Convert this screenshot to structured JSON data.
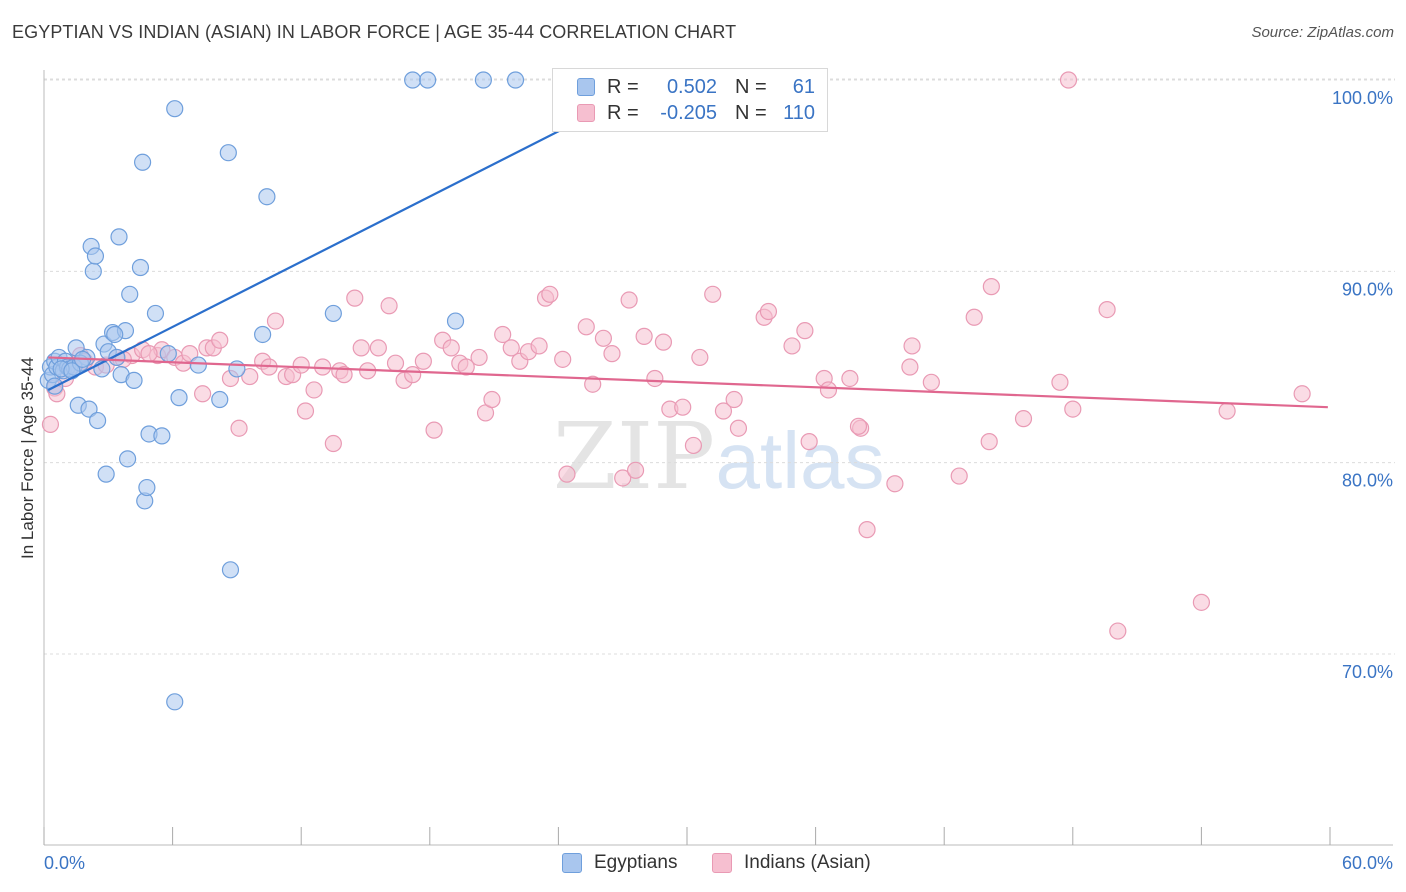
{
  "title": "EGYPTIAN VS INDIAN (ASIAN) IN LABOR FORCE | AGE 35-44 CORRELATION CHART",
  "source": "Source: ZipAtlas.com",
  "watermark": {
    "zip": "ZIP",
    "atlas": "atlas"
  },
  "legend": {
    "r_label": "R =",
    "n_label": "N =",
    "egyptians": {
      "r": "0.502",
      "n": "61"
    },
    "indians": {
      "r": "-0.205",
      "n": "110"
    }
  },
  "bottom_legend": {
    "egyptians": "Egyptians",
    "indians": "Indians (Asian)"
  },
  "colors": {
    "egyptians_fill": "#a9c6ee",
    "egyptians_stroke": "#6f9fdc",
    "egyptians_line": "#2b6fcc",
    "indians_fill": "#f6bfd0",
    "indians_stroke": "#e99ab4",
    "indians_line": "#e0678f",
    "tick_label": "#3a74c4",
    "grid": "#dcdcdc"
  },
  "chart_data": {
    "type": "scatter",
    "title": "EGYPTIAN VS INDIAN (ASIAN) IN LABOR FORCE | AGE 35-44 CORRELATION CHART",
    "xlabel": "",
    "ylabel": "In Labor Force | Age 35-44",
    "xlim": [
      0,
      60
    ],
    "ylim": [
      60,
      102
    ],
    "x_tick_labels": [
      "0.0%",
      "60.0%"
    ],
    "y_ticks": [
      70,
      80,
      90,
      100
    ],
    "y_tick_labels": [
      "70.0%",
      "80.0%",
      "90.0%",
      "100.0%"
    ],
    "grid": true,
    "legend_position": "top-center",
    "series": [
      {
        "name": "Egyptians",
        "r": 0.502,
        "n": 61,
        "trend": {
          "x": [
            0.2,
            25.2
          ],
          "y": [
            83.8,
            98.0
          ]
        },
        "points": [
          [
            0.2,
            84.3
          ],
          [
            0.3,
            85.0
          ],
          [
            0.4,
            84.6
          ],
          [
            0.5,
            85.3
          ],
          [
            0.6,
            85.0
          ],
          [
            0.7,
            85.5
          ],
          [
            0.9,
            84.8
          ],
          [
            1.0,
            85.3
          ],
          [
            1.1,
            85.0
          ],
          [
            1.2,
            84.9
          ],
          [
            1.4,
            85.0
          ],
          [
            1.5,
            86.0
          ],
          [
            1.6,
            83.0
          ],
          [
            2.0,
            85.5
          ],
          [
            2.1,
            82.8
          ],
          [
            2.2,
            91.3
          ],
          [
            2.3,
            90.0
          ],
          [
            2.4,
            90.8
          ],
          [
            2.5,
            82.2
          ],
          [
            2.8,
            86.2
          ],
          [
            2.9,
            79.4
          ],
          [
            3.0,
            85.8
          ],
          [
            3.2,
            86.8
          ],
          [
            3.4,
            85.5
          ],
          [
            3.5,
            91.8
          ],
          [
            3.6,
            84.6
          ],
          [
            3.8,
            86.9
          ],
          [
            3.9,
            80.2
          ],
          [
            4.0,
            88.8
          ],
          [
            4.2,
            84.3
          ],
          [
            4.6,
            95.7
          ],
          [
            4.5,
            90.2
          ],
          [
            4.7,
            78.0
          ],
          [
            4.8,
            78.7
          ],
          [
            4.9,
            81.5
          ],
          [
            5.2,
            87.8
          ],
          [
            5.5,
            81.4
          ],
          [
            5.8,
            85.7
          ],
          [
            6.1,
            67.5
          ],
          [
            6.1,
            98.5
          ],
          [
            6.3,
            83.4
          ],
          [
            7.2,
            85.1
          ],
          [
            8.2,
            83.3
          ],
          [
            8.7,
            74.4
          ],
          [
            8.6,
            96.2
          ],
          [
            9.0,
            84.9
          ],
          [
            10.2,
            86.7
          ],
          [
            10.4,
            93.9
          ],
          [
            13.5,
            87.8
          ],
          [
            17.2,
            100.0
          ],
          [
            17.9,
            100.0
          ],
          [
            19.2,
            87.4
          ],
          [
            20.5,
            100.0
          ],
          [
            22.0,
            100.0
          ],
          [
            1.7,
            85.2
          ],
          [
            2.7,
            84.9
          ],
          [
            3.3,
            86.7
          ],
          [
            0.8,
            84.9
          ],
          [
            1.3,
            84.8
          ],
          [
            1.8,
            85.4
          ],
          [
            0.5,
            84.0
          ]
        ]
      },
      {
        "name": "Indians (Asian)",
        "r": -0.205,
        "n": 110,
        "trend": {
          "x": [
            0.2,
            59.9
          ],
          "y": [
            85.5,
            82.9
          ]
        },
        "points": [
          [
            0.3,
            82.0
          ],
          [
            0.5,
            83.9
          ],
          [
            1.0,
            84.4
          ],
          [
            1.4,
            85.1
          ],
          [
            1.7,
            85.6
          ],
          [
            2.4,
            85.0
          ],
          [
            3.4,
            85.5
          ],
          [
            4.1,
            85.6
          ],
          [
            4.6,
            85.9
          ],
          [
            5.3,
            85.6
          ],
          [
            5.5,
            85.9
          ],
          [
            6.1,
            85.5
          ],
          [
            6.5,
            85.2
          ],
          [
            6.8,
            85.7
          ],
          [
            7.4,
            83.6
          ],
          [
            7.6,
            86.0
          ],
          [
            7.9,
            86.0
          ],
          [
            8.2,
            86.4
          ],
          [
            8.7,
            84.4
          ],
          [
            9.1,
            81.8
          ],
          [
            9.6,
            84.5
          ],
          [
            10.2,
            85.3
          ],
          [
            10.5,
            85.0
          ],
          [
            10.8,
            87.4
          ],
          [
            11.3,
            84.5
          ],
          [
            11.6,
            84.6
          ],
          [
            12.0,
            85.1
          ],
          [
            12.2,
            82.7
          ],
          [
            12.6,
            83.8
          ],
          [
            13.0,
            85.0
          ],
          [
            13.5,
            81.0
          ],
          [
            13.8,
            84.8
          ],
          [
            14.0,
            84.6
          ],
          [
            14.5,
            88.6
          ],
          [
            14.8,
            86.0
          ],
          [
            15.1,
            84.8
          ],
          [
            15.6,
            86.0
          ],
          [
            16.1,
            88.2
          ],
          [
            16.4,
            85.2
          ],
          [
            16.8,
            84.3
          ],
          [
            17.2,
            84.6
          ],
          [
            17.7,
            85.3
          ],
          [
            18.2,
            81.7
          ],
          [
            18.6,
            86.4
          ],
          [
            19.0,
            86.0
          ],
          [
            19.4,
            85.2
          ],
          [
            19.7,
            85.0
          ],
          [
            20.3,
            85.5
          ],
          [
            20.6,
            82.6
          ],
          [
            20.9,
            83.3
          ],
          [
            21.4,
            86.7
          ],
          [
            21.8,
            86.0
          ],
          [
            22.2,
            85.3
          ],
          [
            22.6,
            85.8
          ],
          [
            23.1,
            86.1
          ],
          [
            23.4,
            88.6
          ],
          [
            23.6,
            88.8
          ],
          [
            24.2,
            85.4
          ],
          [
            24.4,
            79.4
          ],
          [
            25.3,
            87.1
          ],
          [
            25.6,
            84.1
          ],
          [
            26.1,
            86.5
          ],
          [
            26.5,
            85.7
          ],
          [
            27.0,
            79.2
          ],
          [
            27.3,
            88.5
          ],
          [
            27.6,
            79.6
          ],
          [
            28.0,
            86.6
          ],
          [
            28.5,
            84.4
          ],
          [
            28.9,
            86.3
          ],
          [
            29.2,
            82.8
          ],
          [
            29.8,
            82.9
          ],
          [
            30.3,
            80.9
          ],
          [
            30.6,
            85.5
          ],
          [
            31.2,
            88.8
          ],
          [
            31.7,
            82.7
          ],
          [
            32.2,
            83.3
          ],
          [
            32.4,
            81.8
          ],
          [
            33.6,
            87.6
          ],
          [
            33.8,
            87.9
          ],
          [
            34.9,
            86.1
          ],
          [
            35.5,
            86.9
          ],
          [
            35.7,
            81.1
          ],
          [
            36.4,
            84.4
          ],
          [
            36.6,
            83.8
          ],
          [
            37.6,
            84.4
          ],
          [
            38.1,
            81.8
          ],
          [
            38.4,
            76.5
          ],
          [
            38.0,
            81.9
          ],
          [
            39.7,
            78.9
          ],
          [
            40.4,
            85.0
          ],
          [
            40.5,
            86.1
          ],
          [
            41.4,
            84.2
          ],
          [
            42.7,
            79.3
          ],
          [
            43.4,
            87.6
          ],
          [
            44.1,
            81.1
          ],
          [
            44.2,
            89.2
          ],
          [
            45.7,
            82.3
          ],
          [
            47.4,
            84.2
          ],
          [
            47.8,
            100.0
          ],
          [
            48.0,
            82.8
          ],
          [
            49.6,
            88.0
          ],
          [
            50.1,
            71.2
          ],
          [
            54.0,
            72.7
          ],
          [
            55.2,
            82.7
          ],
          [
            58.7,
            83.6
          ],
          [
            0.6,
            83.6
          ],
          [
            1.9,
            85.3
          ],
          [
            2.9,
            85.1
          ],
          [
            3.7,
            85.4
          ],
          [
            4.9,
            85.7
          ]
        ]
      }
    ]
  },
  "y_axis_label": "In Labor Force | Age 35-44"
}
